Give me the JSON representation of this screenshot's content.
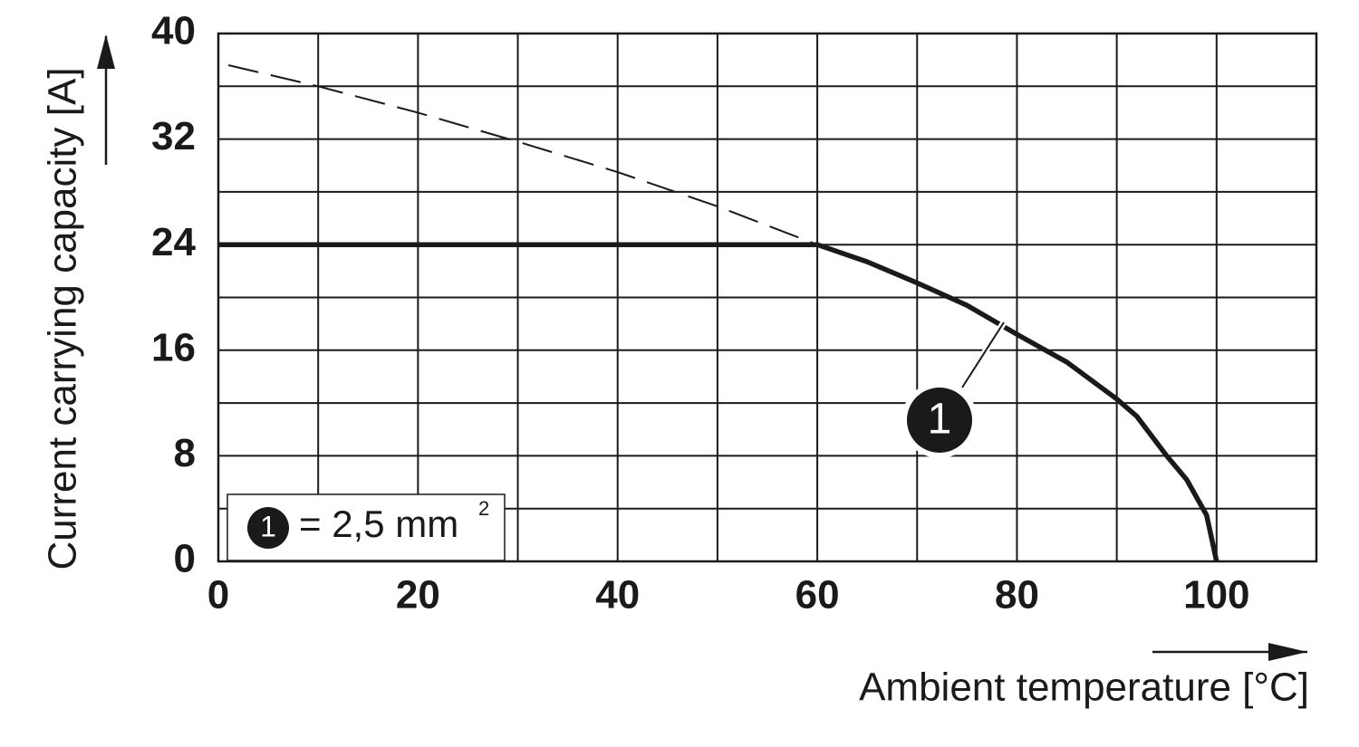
{
  "chart_data": {
    "type": "line",
    "xlabel": "Ambient temperature [°C]",
    "ylabel": "Current carrying capacity [A]",
    "xlim": [
      0,
      110
    ],
    "ylim": [
      0,
      40
    ],
    "xticks": [
      0,
      20,
      40,
      60,
      80,
      100
    ],
    "yticks": [
      0,
      8,
      16,
      24,
      32,
      40
    ],
    "xminor": [
      10,
      30,
      50,
      70,
      90,
      110
    ],
    "yminor": [
      4,
      12,
      20,
      28,
      36
    ],
    "grid": true,
    "series": [
      {
        "name": "1",
        "color": "#1a1a1a",
        "style": "solid",
        "x": [
          0,
          60,
          65,
          70,
          75,
          80,
          85,
          90,
          92,
          95,
          97,
          99,
          100
        ],
        "values": [
          24,
          24,
          22.7,
          21.1,
          19.4,
          17.2,
          15.1,
          12.3,
          11,
          8,
          6.2,
          3.5,
          0
        ]
      },
      {
        "color": "#1a1a1a",
        "style": "dashed",
        "x": [
          1,
          10,
          20,
          30,
          40,
          50,
          60
        ],
        "values": [
          37.6,
          36,
          34,
          31.8,
          29.5,
          26.9,
          24
        ]
      }
    ],
    "legend_label": "= 2,5 mm",
    "legend_superscript": "2"
  }
}
